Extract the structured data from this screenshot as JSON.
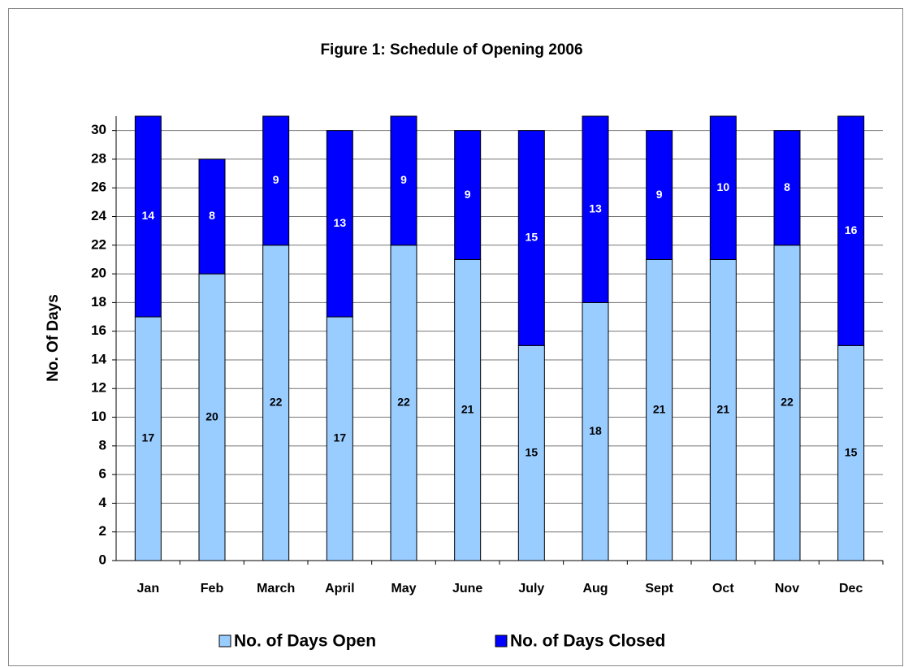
{
  "chart_data": {
    "type": "stacked_bar",
    "title": "Figure 1: Schedule of Opening 2006",
    "y_label": "No. Of Days",
    "categories": [
      "Jan",
      "Feb",
      "March",
      "April",
      "May",
      "June",
      "July",
      "Aug",
      "Sept",
      "Oct",
      "Nov",
      "Dec"
    ],
    "series": [
      {
        "name": "No. of Days Open",
        "color": "#99ccff",
        "values": [
          17,
          20,
          22,
          17,
          22,
          21,
          15,
          18,
          21,
          21,
          22,
          15
        ]
      },
      {
        "name": "No. of Days Closed",
        "color": "#0000ff",
        "values": [
          14,
          8,
          9,
          13,
          9,
          9,
          15,
          13,
          9,
          10,
          8,
          16
        ]
      }
    ],
    "ylim": [
      0,
      31
    ],
    "yticks": [
      0,
      2,
      4,
      6,
      8,
      10,
      12,
      14,
      16,
      18,
      20,
      22,
      24,
      26,
      28,
      30
    ],
    "grid": true,
    "legend": "bottom"
  }
}
